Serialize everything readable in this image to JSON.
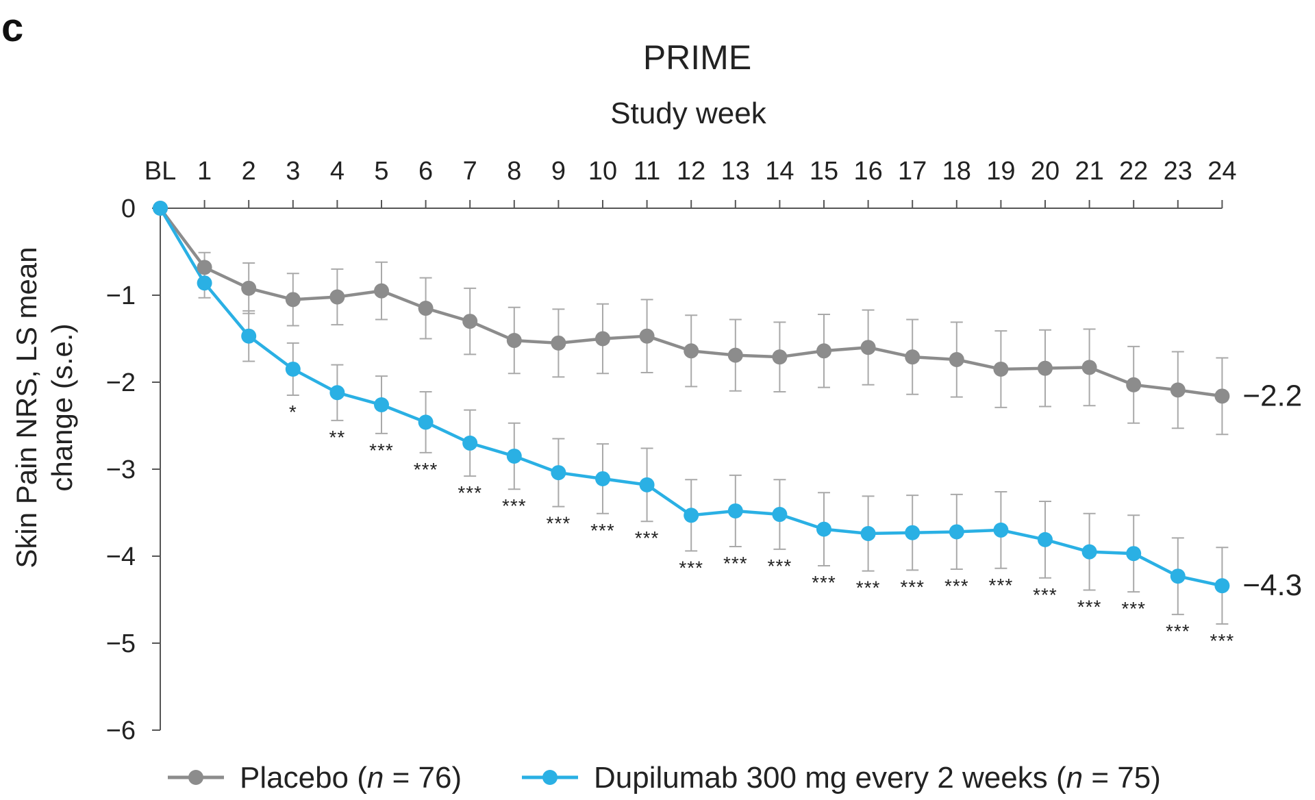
{
  "panel_label": "c",
  "chart_data": {
    "type": "line",
    "title": "PRIME",
    "xlabel": "Study week",
    "ylabel_line1": "Skin Pain NRS, LS mean",
    "ylabel_line2": "change (s.e.)",
    "x_ticks": [
      "BL",
      "1",
      "2",
      "3",
      "4",
      "5",
      "6",
      "7",
      "8",
      "9",
      "10",
      "11",
      "12",
      "13",
      "14",
      "15",
      "16",
      "17",
      "18",
      "19",
      "20",
      "21",
      "22",
      "23",
      "24"
    ],
    "x": [
      0,
      1,
      2,
      3,
      4,
      5,
      6,
      7,
      8,
      9,
      10,
      11,
      12,
      13,
      14,
      15,
      16,
      17,
      18,
      19,
      20,
      21,
      22,
      23,
      24
    ],
    "y_ticks": [
      "0",
      "−1",
      "−2",
      "−3",
      "−4",
      "−5",
      "−6"
    ],
    "ylim": [
      -6,
      0
    ],
    "grid": false,
    "legend_position": "bottom",
    "series": [
      {
        "name": "Placebo",
        "n_label": "n",
        "n_value": "= 76",
        "color": "#8c8c8c",
        "values": [
          0,
          -0.68,
          -0.92,
          -1.05,
          -1.02,
          -0.95,
          -1.15,
          -1.3,
          -1.52,
          -1.55,
          -1.5,
          -1.47,
          -1.64,
          -1.69,
          -1.71,
          -1.64,
          -1.6,
          -1.71,
          -1.74,
          -1.85,
          -1.84,
          -1.83,
          -2.03,
          -2.09,
          -2.16
        ],
        "errors": [
          0,
          0.17,
          0.29,
          0.3,
          0.32,
          0.33,
          0.35,
          0.38,
          0.38,
          0.39,
          0.4,
          0.42,
          0.41,
          0.41,
          0.4,
          0.42,
          0.43,
          0.43,
          0.43,
          0.44,
          0.44,
          0.44,
          0.44,
          0.44,
          0.44
        ],
        "end_label": "−2.2"
      },
      {
        "name": "Dupilumab 300 mg every 2 weeks",
        "n_label": "n",
        "n_value": "= 75",
        "color": "#2ab0e4",
        "values": [
          0,
          -0.86,
          -1.47,
          -1.85,
          -2.12,
          -2.26,
          -2.46,
          -2.7,
          -2.85,
          -3.04,
          -3.11,
          -3.18,
          -3.53,
          -3.48,
          -3.52,
          -3.69,
          -3.74,
          -3.73,
          -3.72,
          -3.7,
          -3.81,
          -3.95,
          -3.97,
          -4.23,
          -4.34
        ],
        "errors": [
          0,
          0.17,
          0.29,
          0.3,
          0.32,
          0.33,
          0.35,
          0.38,
          0.38,
          0.39,
          0.4,
          0.42,
          0.41,
          0.41,
          0.4,
          0.42,
          0.43,
          0.43,
          0.43,
          0.44,
          0.44,
          0.44,
          0.44,
          0.44,
          0.44
        ],
        "end_label": "−4.3"
      }
    ],
    "significance": [
      "",
      "",
      "",
      "*",
      "**",
      "***",
      "***",
      "***",
      "***",
      "***",
      "***",
      "***",
      "***",
      "***",
      "***",
      "***",
      "***",
      "***",
      "***",
      "***",
      "***",
      "***",
      "***",
      "***",
      "***"
    ]
  }
}
